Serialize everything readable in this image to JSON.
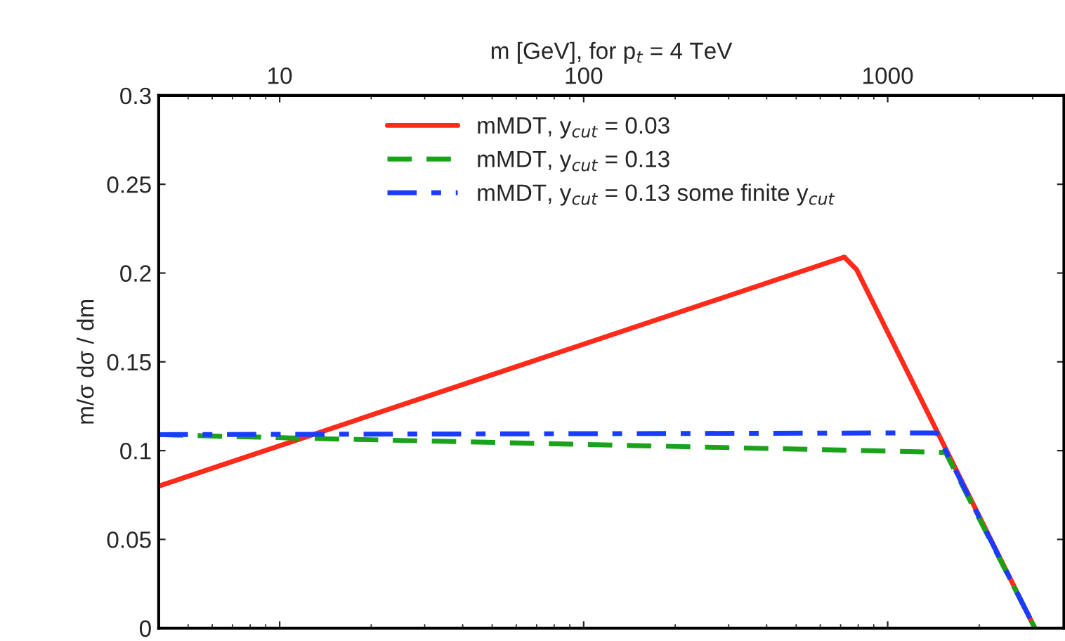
{
  "chart_data": {
    "type": "line",
    "xlabel": "m [GeV], for p$_{t}$ = 4 TeV",
    "ylabel": "m/σ dσ / dm",
    "log": "x",
    "xlim": [
      4,
      3800
    ],
    "xticks": [
      10,
      100,
      1000
    ],
    "ylim": [
      0,
      0.3
    ],
    "yticks": [
      0,
      0.05,
      0.1,
      0.15,
      0.2,
      0.25,
      0.3
    ],
    "tick_labels": "x2y",
    "grid": false,
    "legend": "top",
    "series": [
      {
        "name": "mMDT, y$_{cut}$ = 0.03",
        "color": "#ff2a1a",
        "line_style": "solid",
        "x": [
          4,
          720,
          790,
          3050
        ],
        "values": [
          0.08,
          0.209,
          0.202,
          0
        ]
      },
      {
        "name": "mMDT, y$_{cut}$ = 0.13",
        "color": "#1aa31a",
        "line_style": "dashed",
        "x": [
          4,
          11.7,
          1550,
          3050
        ],
        "values": [
          0.109,
          0.107,
          0.099,
          0
        ]
      },
      {
        "name": "mMDT, y$_{cut}$ = 0.13 some finite y$_{cut}$",
        "color": "#1a3cff",
        "line_style": "dashdot",
        "x": [
          4,
          1450,
          3050
        ],
        "values": [
          0.109,
          0.11,
          0
        ]
      }
    ]
  }
}
